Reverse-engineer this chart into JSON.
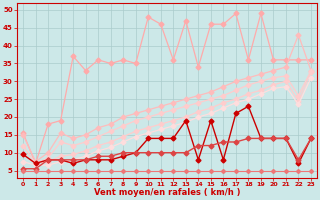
{
  "xlabel": "Vent moyen/en rafales ( km/h )",
  "bg": "#cce8e8",
  "grid_color": "#aacccc",
  "ylim": [
    3,
    52
  ],
  "xlim": [
    -0.5,
    23.5
  ],
  "figsize": [
    3.2,
    2.0
  ],
  "dpi": 100,
  "light_jagged": [
    15.5,
    7.0,
    18.0,
    19.0,
    37.0,
    33.0,
    36.0,
    35.0,
    36.0,
    35.0,
    48.0,
    46.0,
    36.0,
    47.0,
    34.0,
    46.0,
    46.0,
    49.0,
    36.0,
    49.0,
    36.0,
    36.0,
    36.0,
    36.0
  ],
  "light_rise1": [
    15.0,
    7.5,
    10.0,
    15.5,
    14.0,
    15.0,
    17.0,
    18.0,
    20.0,
    21.0,
    22.0,
    23.0,
    24.0,
    25.0,
    26.0,
    27.0,
    28.5,
    30.0,
    31.0,
    32.0,
    33.0,
    34.0,
    43.0,
    33.0
  ],
  "light_rise2": [
    12.0,
    7.0,
    8.5,
    13.0,
    12.0,
    13.0,
    14.5,
    16.0,
    17.5,
    19.0,
    20.0,
    21.0,
    22.0,
    23.0,
    24.0,
    25.0,
    26.0,
    27.5,
    29.0,
    30.0,
    31.0,
    31.5,
    26.0,
    33.0
  ],
  "light_rise3": [
    9.5,
    7.0,
    7.5,
    9.0,
    9.5,
    10.5,
    12.0,
    13.0,
    14.5,
    16.0,
    17.0,
    18.0,
    19.0,
    20.0,
    21.5,
    22.5,
    24.0,
    25.0,
    26.5,
    27.5,
    29.0,
    30.0,
    24.5,
    32.5
  ],
  "light_rise4": [
    7.5,
    6.5,
    6.5,
    7.5,
    8.0,
    9.0,
    10.5,
    11.5,
    13.0,
    14.5,
    15.5,
    16.5,
    17.5,
    18.5,
    20.0,
    21.0,
    22.5,
    24.0,
    25.0,
    26.5,
    28.0,
    28.5,
    23.5,
    31.0
  ],
  "dark1": [
    9.5,
    7.0,
    8.0,
    8.0,
    7.0,
    8.0,
    8.0,
    8.0,
    9.0,
    10.0,
    14.0,
    14.0,
    14.0,
    19.0,
    8.0,
    19.0,
    8.0,
    21.0,
    23.0,
    14.0,
    14.0,
    14.0,
    7.0,
    14.0
  ],
  "dark2": [
    5.5,
    5.5,
    8.0,
    8.0,
    8.0,
    8.0,
    9.0,
    9.0,
    10.0,
    10.0,
    10.0,
    10.0,
    10.0,
    10.0,
    12.0,
    12.0,
    13.0,
    13.0,
    14.0,
    14.0,
    14.0,
    14.0,
    8.0,
    14.0
  ],
  "dark3": [
    5.0,
    5.0,
    5.0,
    5.0,
    5.0,
    5.0,
    5.0,
    5.0,
    5.0,
    5.0,
    5.0,
    5.0,
    5.0,
    5.0,
    5.0,
    5.0,
    5.0,
    5.0,
    5.0,
    5.0,
    5.0,
    5.0,
    5.0,
    5.0
  ],
  "color_light_jagged": "#ffaaaa",
  "color_rise1": "#ffbbbb",
  "color_rise2": "#ffcccc",
  "color_rise3": "#ffcccc",
  "color_rise4": "#ffdddd",
  "color_dark1": "#cc0000",
  "color_dark2": "#dd4444",
  "color_dark3": "#ee7777"
}
